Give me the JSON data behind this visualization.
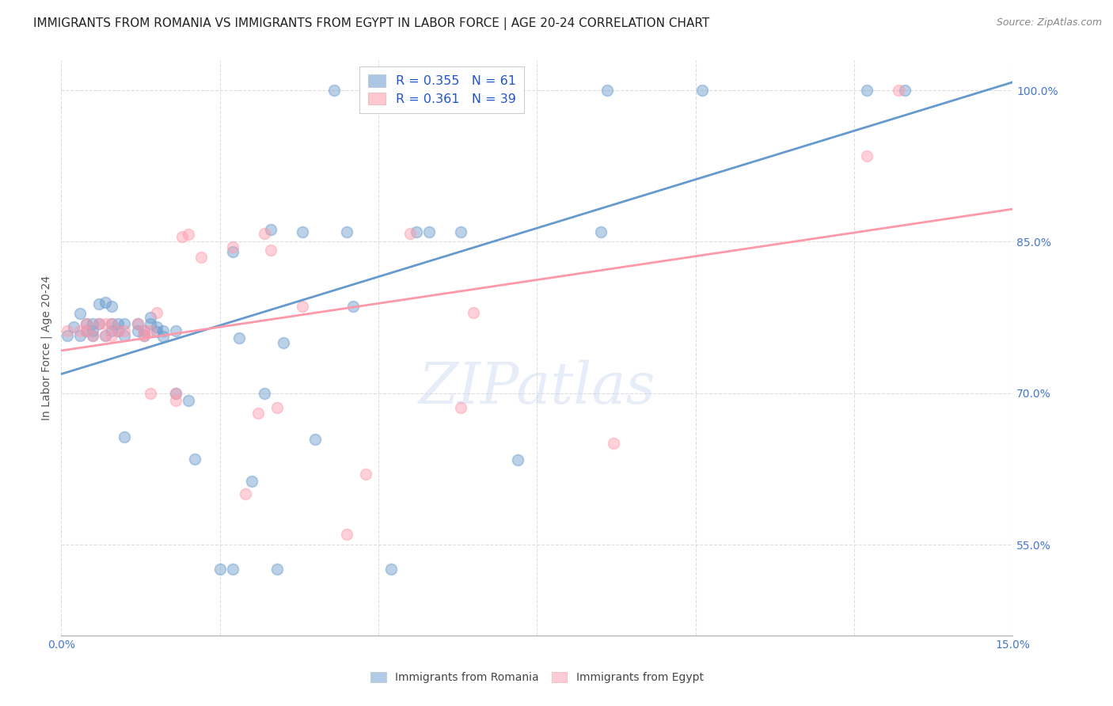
{
  "title": "IMMIGRANTS FROM ROMANIA VS IMMIGRANTS FROM EGYPT IN LABOR FORCE | AGE 20-24 CORRELATION CHART",
  "source": "Source: ZipAtlas.com",
  "ylabel_label": "In Labor Force | Age 20-24",
  "xlim": [
    0.0,
    0.15
  ],
  "ylim": [
    0.46,
    1.03
  ],
  "xticks": [
    0.0,
    0.025,
    0.05,
    0.075,
    0.1,
    0.125,
    0.15
  ],
  "xtick_labels": [
    "0.0%",
    "",
    "",
    "",
    "",
    "",
    "15.0%"
  ],
  "yticks": [
    0.55,
    0.7,
    0.85,
    1.0
  ],
  "ytick_labels": [
    "55.0%",
    "70.0%",
    "85.0%",
    "100.0%"
  ],
  "romania_color": "#6699cc",
  "egypt_color": "#ff99aa",
  "romania_R": 0.355,
  "romania_N": 61,
  "egypt_R": 0.361,
  "egypt_N": 39,
  "romania_x": [
    0.001,
    0.002,
    0.003,
    0.003,
    0.004,
    0.004,
    0.005,
    0.005,
    0.005,
    0.006,
    0.006,
    0.007,
    0.007,
    0.008,
    0.008,
    0.008,
    0.009,
    0.009,
    0.01,
    0.01,
    0.01,
    0.012,
    0.012,
    0.013,
    0.013,
    0.014,
    0.014,
    0.015,
    0.015,
    0.016,
    0.016,
    0.018,
    0.018,
    0.02,
    0.021,
    0.025,
    0.027,
    0.027,
    0.028,
    0.03,
    0.032,
    0.033,
    0.034,
    0.035,
    0.038,
    0.04,
    0.043,
    0.045,
    0.046,
    0.052,
    0.056,
    0.058,
    0.062,
    0.063,
    0.063,
    0.072,
    0.085,
    0.086,
    0.101,
    0.127,
    0.133
  ],
  "romania_y": [
    0.757,
    0.766,
    0.757,
    0.779,
    0.762,
    0.769,
    0.769,
    0.762,
    0.757,
    0.788,
    0.769,
    0.757,
    0.79,
    0.762,
    0.769,
    0.786,
    0.762,
    0.769,
    0.657,
    0.757,
    0.769,
    0.762,
    0.769,
    0.762,
    0.757,
    0.769,
    0.775,
    0.761,
    0.766,
    0.756,
    0.762,
    0.762,
    0.7,
    0.693,
    0.635,
    0.526,
    0.526,
    0.84,
    0.755,
    0.613,
    0.7,
    0.862,
    0.526,
    0.75,
    0.86,
    0.654,
    1.0,
    0.86,
    0.786,
    0.526,
    0.86,
    0.86,
    1.0,
    1.0,
    0.86,
    0.634,
    0.86,
    1.0,
    1.0,
    1.0,
    1.0
  ],
  "egypt_x": [
    0.001,
    0.003,
    0.004,
    0.004,
    0.005,
    0.006,
    0.007,
    0.007,
    0.008,
    0.008,
    0.009,
    0.01,
    0.012,
    0.013,
    0.013,
    0.014,
    0.014,
    0.015,
    0.018,
    0.018,
    0.019,
    0.02,
    0.022,
    0.027,
    0.029,
    0.031,
    0.032,
    0.033,
    0.034,
    0.038,
    0.045,
    0.048,
    0.049,
    0.055,
    0.063,
    0.065,
    0.087,
    0.127,
    0.132
  ],
  "egypt_y": [
    0.762,
    0.762,
    0.762,
    0.769,
    0.757,
    0.769,
    0.757,
    0.769,
    0.769,
    0.757,
    0.762,
    0.762,
    0.769,
    0.762,
    0.757,
    0.762,
    0.7,
    0.78,
    0.7,
    0.693,
    0.855,
    0.857,
    0.835,
    0.845,
    0.6,
    0.68,
    0.858,
    0.842,
    0.686,
    0.786,
    0.56,
    0.62,
    1.0,
    0.858,
    0.686,
    0.78,
    0.65,
    0.935,
    1.0
  ],
  "watermark": "ZIPatlas",
  "background_color": "#ffffff",
  "grid_color": "#dddddd",
  "title_fontsize": 11,
  "axis_label_fontsize": 10,
  "tick_fontsize": 10,
  "legend_fontsize": 11.5
}
